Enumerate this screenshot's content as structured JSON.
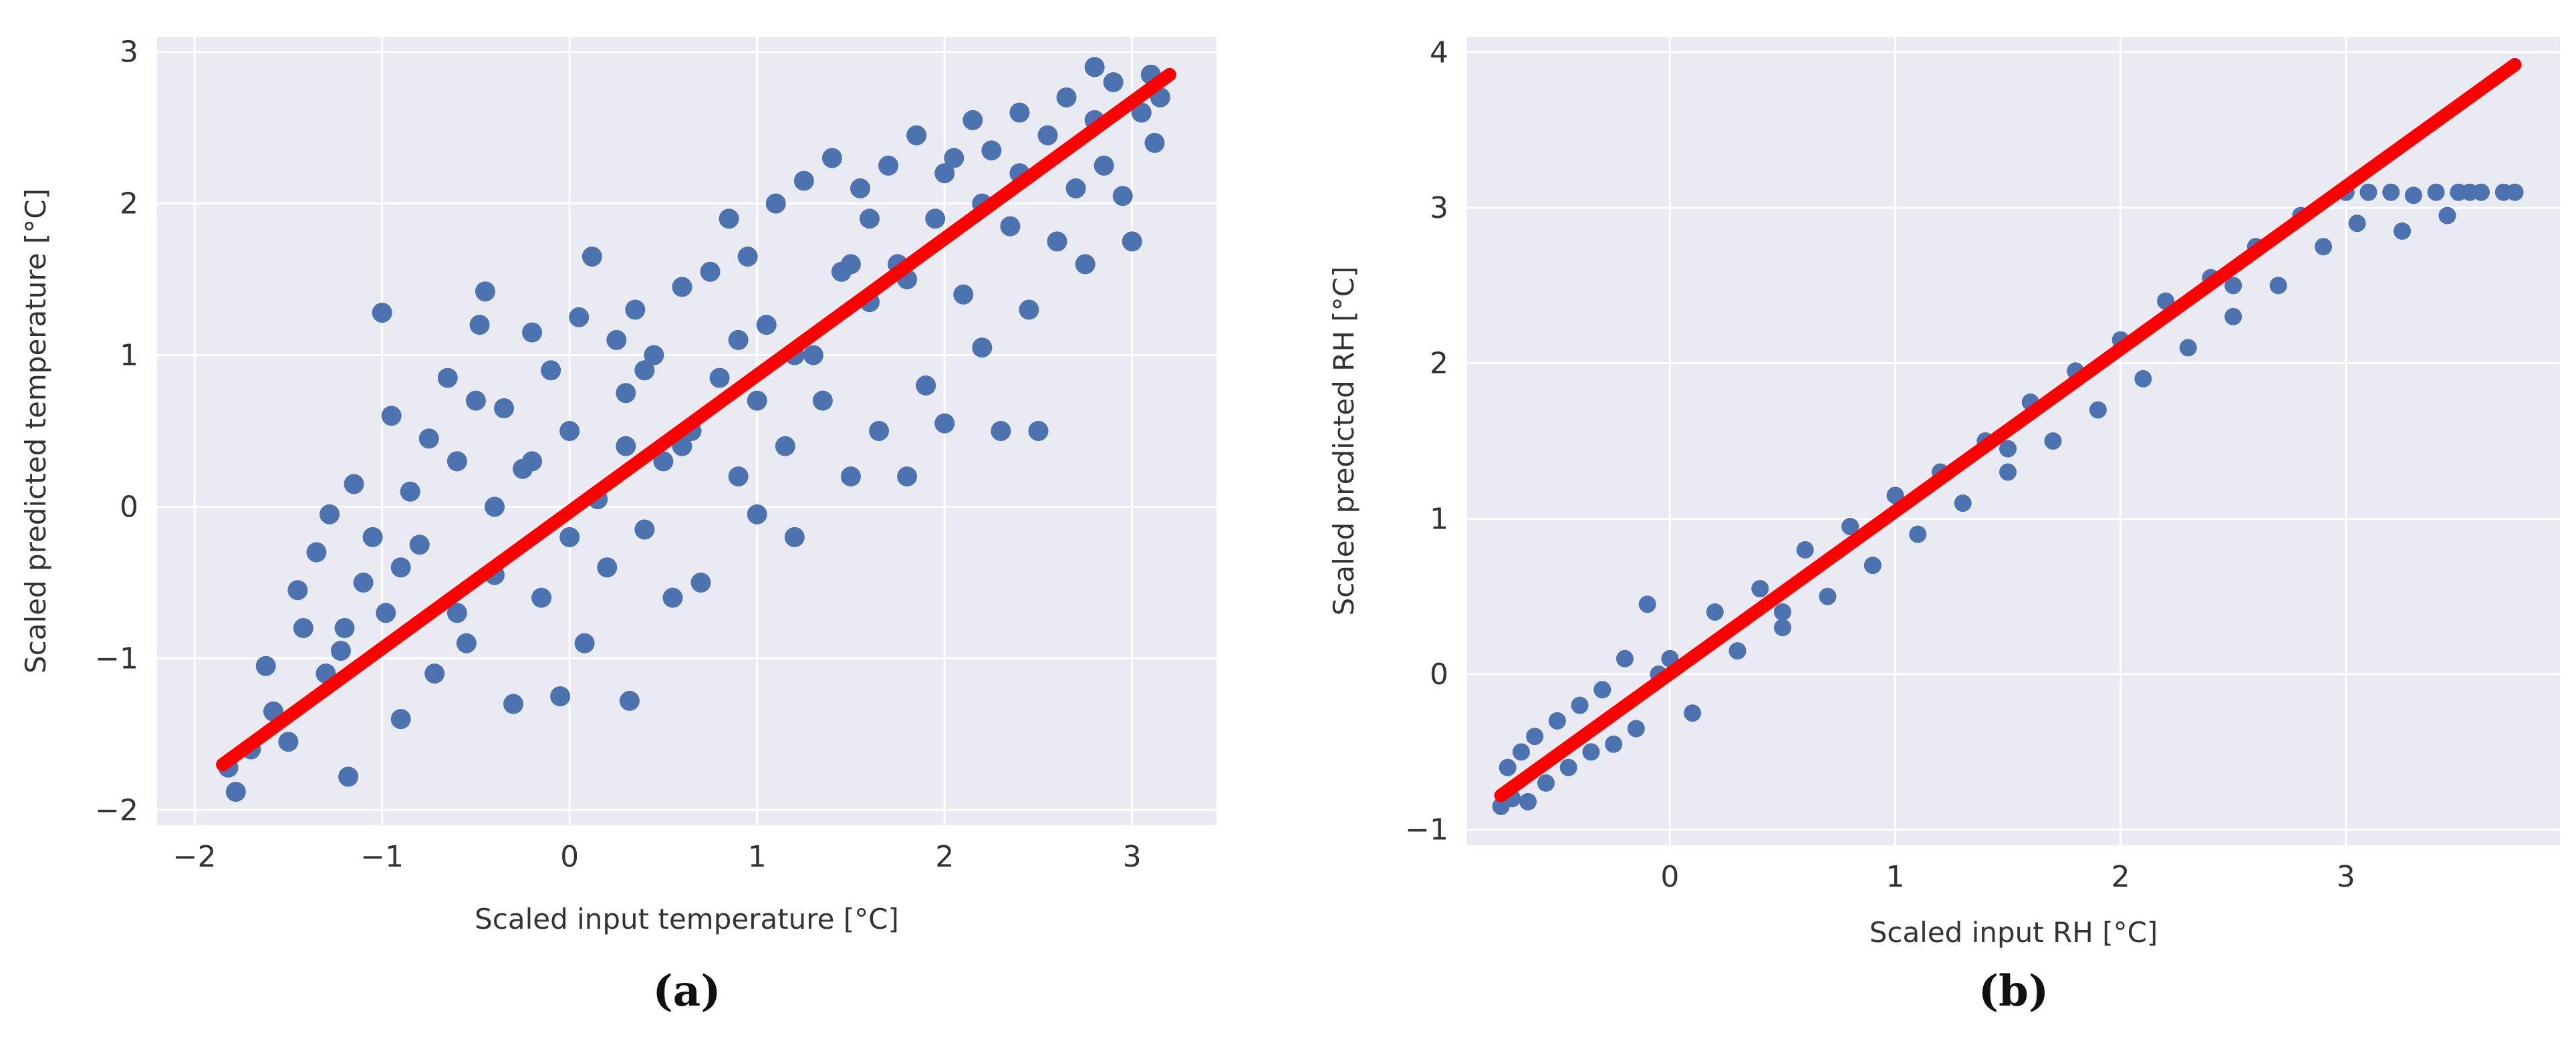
{
  "colors": {
    "panel_bg": "#EAEAF2",
    "grid": "#FFFFFF",
    "points": "#4C72B0",
    "fit_line": "#FF0000",
    "text": "#333333"
  },
  "chart_data": [
    {
      "type": "scatter",
      "panel_label": "(a)",
      "title": "",
      "xlabel": "Scaled input temperature [°C]",
      "ylabel": "Scaled predicted temperature [°C]",
      "xlim": [
        -2.2,
        3.45
      ],
      "ylim": [
        -2.1,
        3.1
      ],
      "xticks": [
        -2,
        -1,
        0,
        1,
        2,
        3
      ],
      "xtick_labels": [
        "−2",
        "−1",
        "0",
        "1",
        "2",
        "3"
      ],
      "yticks": [
        -2,
        -1,
        0,
        1,
        2,
        3
      ],
      "ytick_labels": [
        "−2",
        "−1",
        "0",
        "1",
        "2",
        "3"
      ],
      "grid": true,
      "fit_line": {
        "x": [
          -1.85,
          3.2
        ],
        "y": [
          -1.7,
          2.85
        ]
      },
      "points": [
        [
          -1.82,
          -1.72
        ],
        [
          -1.78,
          -1.88
        ],
        [
          -1.7,
          -1.6
        ],
        [
          -1.62,
          -1.05
        ],
        [
          -1.58,
          -1.35
        ],
        [
          -1.5,
          -1.55
        ],
        [
          -1.45,
          -0.55
        ],
        [
          -1.42,
          -0.8
        ],
        [
          -1.35,
          -0.3
        ],
        [
          -1.3,
          -1.1
        ],
        [
          -1.28,
          -0.05
        ],
        [
          -1.22,
          -0.95
        ],
        [
          -1.18,
          -1.78
        ],
        [
          -1.15,
          0.15
        ],
        [
          -1.1,
          -0.5
        ],
        [
          -1.05,
          -0.2
        ],
        [
          -1.0,
          1.28
        ],
        [
          -0.98,
          -0.7
        ],
        [
          -0.95,
          0.6
        ],
        [
          -0.9,
          -1.4
        ],
        [
          -0.85,
          0.1
        ],
        [
          -0.8,
          -0.25
        ],
        [
          -0.75,
          0.45
        ],
        [
          -0.72,
          -1.1
        ],
        [
          -0.65,
          0.85
        ],
        [
          -0.6,
          0.3
        ],
        [
          -0.55,
          -0.9
        ],
        [
          -0.5,
          0.7
        ],
        [
          -0.48,
          1.2
        ],
        [
          -0.45,
          1.42
        ],
        [
          -0.4,
          -0.45
        ],
        [
          -0.35,
          0.65
        ],
        [
          -0.3,
          -1.3
        ],
        [
          -0.25,
          0.25
        ],
        [
          -0.2,
          1.15
        ],
        [
          -0.15,
          -0.6
        ],
        [
          -0.1,
          0.9
        ],
        [
          -0.05,
          -1.25
        ],
        [
          0.0,
          0.5
        ],
        [
          0.05,
          1.25
        ],
        [
          0.08,
          -0.9
        ],
        [
          0.12,
          1.65
        ],
        [
          0.15,
          0.05
        ],
        [
          0.2,
          -0.4
        ],
        [
          0.25,
          1.1
        ],
        [
          0.3,
          0.75
        ],
        [
          0.32,
          -1.28
        ],
        [
          0.35,
          1.3
        ],
        [
          0.4,
          -0.15
        ],
        [
          0.45,
          1.0
        ],
        [
          0.5,
          0.3
        ],
        [
          0.55,
          -0.6
        ],
        [
          0.6,
          1.45
        ],
        [
          0.65,
          0.5
        ],
        [
          0.7,
          -0.5
        ],
        [
          0.75,
          1.55
        ],
        [
          0.8,
          0.85
        ],
        [
          0.85,
          1.9
        ],
        [
          0.9,
          0.2
        ],
        [
          0.95,
          1.65
        ],
        [
          1.0,
          -0.05
        ],
        [
          1.05,
          1.2
        ],
        [
          1.1,
          2.0
        ],
        [
          1.15,
          0.4
        ],
        [
          1.2,
          -0.2
        ],
        [
          1.25,
          2.15
        ],
        [
          1.3,
          1.0
        ],
        [
          1.35,
          0.7
        ],
        [
          1.4,
          2.3
        ],
        [
          1.45,
          1.55
        ],
        [
          1.5,
          0.2
        ],
        [
          1.55,
          2.1
        ],
        [
          1.6,
          1.35
        ],
        [
          1.65,
          0.5
        ],
        [
          1.7,
          2.25
        ],
        [
          1.75,
          1.6
        ],
        [
          1.8,
          0.2
        ],
        [
          1.85,
          2.45
        ],
        [
          1.9,
          0.8
        ],
        [
          1.95,
          1.9
        ],
        [
          2.0,
          0.55
        ],
        [
          2.05,
          2.3
        ],
        [
          2.1,
          1.4
        ],
        [
          2.15,
          2.55
        ],
        [
          2.2,
          1.05
        ],
        [
          2.25,
          2.35
        ],
        [
          2.3,
          0.5
        ],
        [
          2.35,
          1.85
        ],
        [
          2.4,
          2.6
        ],
        [
          2.45,
          1.3
        ],
        [
          2.5,
          0.5
        ],
        [
          2.55,
          2.45
        ],
        [
          2.6,
          1.75
        ],
        [
          2.65,
          2.7
        ],
        [
          2.7,
          2.1
        ],
        [
          2.75,
          1.6
        ],
        [
          2.8,
          2.55
        ],
        [
          2.85,
          2.25
        ],
        [
          2.9,
          2.8
        ],
        [
          2.95,
          2.05
        ],
        [
          3.0,
          1.75
        ],
        [
          3.05,
          2.6
        ],
        [
          3.1,
          2.85
        ],
        [
          3.12,
          2.4
        ],
        [
          3.15,
          2.7
        ],
        [
          -0.9,
          -0.4
        ],
        [
          -0.4,
          0.0
        ],
        [
          0.3,
          0.4
        ],
        [
          0.9,
          1.1
        ],
        [
          1.5,
          1.6
        ],
        [
          2.0,
          2.2
        ],
        [
          -1.2,
          -0.8
        ],
        [
          -0.6,
          -0.7
        ],
        [
          0.0,
          -0.2
        ],
        [
          0.6,
          0.4
        ],
        [
          1.2,
          1.0
        ],
        [
          1.8,
          1.5
        ],
        [
          2.4,
          2.2
        ],
        [
          -0.2,
          0.3
        ],
        [
          0.4,
          0.9
        ],
        [
          1.0,
          0.7
        ],
        [
          1.6,
          1.9
        ],
        [
          2.2,
          2.0
        ],
        [
          2.8,
          2.9
        ]
      ]
    },
    {
      "type": "scatter",
      "panel_label": "(b)",
      "title": "",
      "xlabel": "Scaled input RH [°C]",
      "ylabel": "Scaled predicted RH [°C]",
      "xlim": [
        -0.9,
        3.95
      ],
      "ylim": [
        -1.1,
        4.1
      ],
      "xticks": [
        0,
        1,
        2,
        3
      ],
      "xtick_labels": [
        "0",
        "1",
        "2",
        "3"
      ],
      "yticks": [
        -1,
        0,
        1,
        2,
        3,
        4
      ],
      "ytick_labels": [
        "−1",
        "0",
        "1",
        "2",
        "3",
        "4"
      ],
      "grid": true,
      "fit_line": {
        "x": [
          -0.75,
          3.75
        ],
        "y": [
          -0.78,
          3.92
        ]
      },
      "points": [
        [
          -0.75,
          -0.85
        ],
        [
          -0.72,
          -0.6
        ],
        [
          -0.7,
          -0.8
        ],
        [
          -0.66,
          -0.5
        ],
        [
          -0.63,
          -0.82
        ],
        [
          -0.6,
          -0.4
        ],
        [
          -0.55,
          -0.7
        ],
        [
          -0.5,
          -0.3
        ],
        [
          -0.45,
          -0.6
        ],
        [
          -0.4,
          -0.2
        ],
        [
          -0.35,
          -0.5
        ],
        [
          -0.3,
          -0.1
        ],
        [
          -0.25,
          -0.45
        ],
        [
          -0.2,
          0.1
        ],
        [
          -0.15,
          -0.35
        ],
        [
          -0.1,
          0.45
        ],
        [
          -0.05,
          0.0
        ],
        [
          0.0,
          0.1
        ],
        [
          0.1,
          -0.25
        ],
        [
          0.2,
          0.4
        ],
        [
          0.3,
          0.15
        ],
        [
          0.4,
          0.55
        ],
        [
          0.5,
          0.3
        ],
        [
          0.6,
          0.8
        ],
        [
          0.7,
          0.5
        ],
        [
          0.8,
          0.95
        ],
        [
          0.9,
          0.7
        ],
        [
          1.0,
          1.15
        ],
        [
          1.1,
          0.9
        ],
        [
          1.2,
          1.3
        ],
        [
          1.3,
          1.1
        ],
        [
          1.4,
          1.5
        ],
        [
          1.5,
          1.3
        ],
        [
          1.6,
          1.75
        ],
        [
          1.7,
          1.5
        ],
        [
          1.8,
          1.95
        ],
        [
          1.9,
          1.7
        ],
        [
          2.0,
          2.15
        ],
        [
          2.1,
          1.9
        ],
        [
          2.2,
          2.4
        ],
        [
          2.3,
          2.1
        ],
        [
          2.4,
          2.55
        ],
        [
          2.5,
          2.3
        ],
        [
          2.6,
          2.75
        ],
        [
          2.7,
          2.5
        ],
        [
          2.8,
          2.95
        ],
        [
          2.9,
          2.75
        ],
        [
          3.0,
          3.1
        ],
        [
          3.05,
          2.9
        ],
        [
          3.1,
          3.1
        ],
        [
          3.2,
          3.1
        ],
        [
          3.3,
          3.08
        ],
        [
          3.4,
          3.1
        ],
        [
          3.5,
          3.1
        ],
        [
          3.55,
          3.1
        ],
        [
          3.6,
          3.1
        ],
        [
          3.7,
          3.1
        ],
        [
          3.75,
          3.1
        ],
        [
          3.25,
          2.85
        ],
        [
          3.45,
          2.95
        ],
        [
          0.5,
          0.4
        ],
        [
          1.5,
          1.45
        ],
        [
          2.5,
          2.5
        ]
      ]
    }
  ]
}
